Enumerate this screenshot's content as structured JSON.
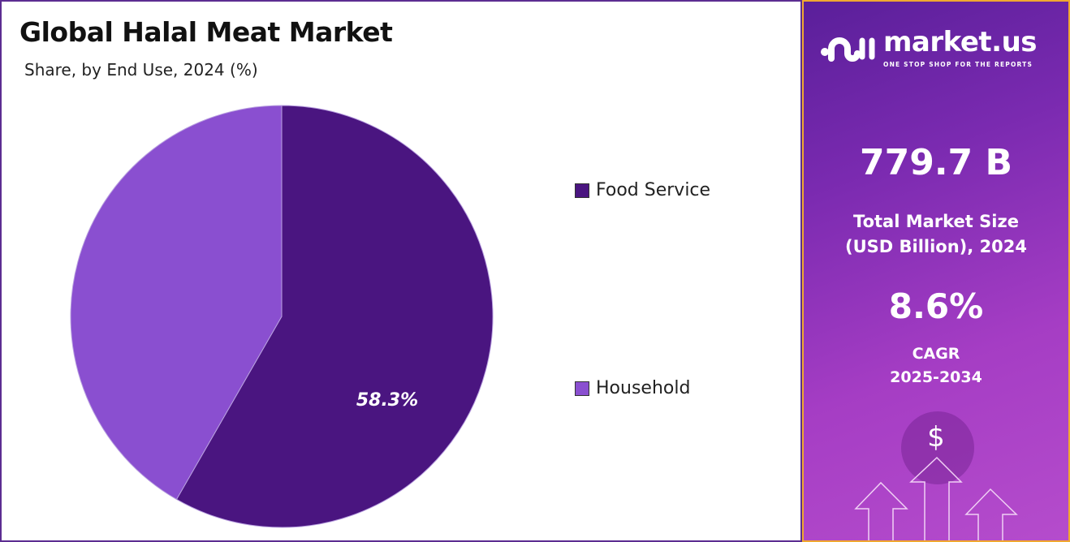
{
  "chart_data": {
    "type": "pie",
    "title": "Global Halal Meat Market",
    "subtitle": "Share, by End Use, 2024 (%)",
    "categories": [
      "Food Service",
      "Household"
    ],
    "values": [
      58.3,
      41.7
    ],
    "data_labels": [
      "58.3%",
      ""
    ],
    "colors": [
      "#4a1580",
      "#8a4fd0"
    ],
    "start_angle": "top, clockwise",
    "legend_position": "right"
  },
  "panel": {
    "brand_name": "market.us",
    "brand_tagline": "ONE STOP SHOP FOR THE REPORTS",
    "market_size": "779.7 B",
    "market_size_label_1": "Total Market Size",
    "market_size_label_2": "(USD Billion), 2024",
    "cagr": "8.6%",
    "cagr_label_1": "CAGR",
    "cagr_label_2": "2025-2034",
    "dollar_symbol": "$",
    "accent_border": "#f0a830"
  }
}
